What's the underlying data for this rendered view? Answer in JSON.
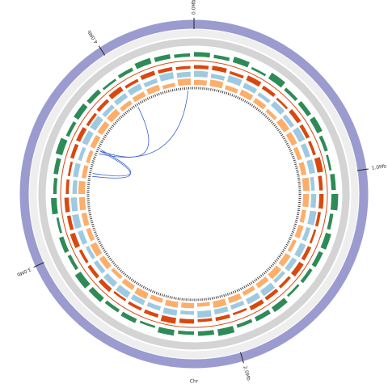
{
  "chart_data": {
    "type": "circos",
    "xlabel": "Chr",
    "xlim": [
      0,
      4.4
    ],
    "xticks": [
      {
        "value": 0,
        "label": "0.0Mb"
      },
      {
        "value": 1,
        "label": "1.0Mb"
      },
      {
        "value": 2,
        "label": "2.0Mb"
      },
      {
        "value": 3,
        "label": "3.0Mb"
      },
      {
        "value": 4,
        "label": "4.0Mb"
      }
    ],
    "tracks": [
      {
        "color": "#2e8b57",
        "values": [
          0.4,
          0.3,
          0.5,
          0.2,
          0.6,
          0.3,
          0.4,
          0.5,
          0.3,
          0.2,
          0.4,
          0.6,
          0.3,
          0.5,
          0.4,
          0.3,
          0.2,
          0.5,
          0.4,
          0.3,
          0.6,
          0.4,
          0.3,
          0.5,
          0.2,
          0.4,
          0.3,
          0.5,
          0.6,
          0.3,
          0.4,
          0.2,
          0.5,
          0.3,
          0.4,
          0.6,
          0.3,
          0.5,
          0.4,
          0.2,
          0.3,
          0.5,
          0.4,
          0.3
        ]
      },
      {
        "color": "#d9480f",
        "values": [
          0.5,
          0.6,
          0.4,
          0.7,
          0.5,
          0.3,
          0.6,
          0.5,
          0.4,
          0.8,
          0.5,
          0.6,
          0.4,
          0.3,
          0.5,
          0.7,
          0.4,
          0.5,
          0.6,
          0.3,
          0.5,
          0.4,
          0.6,
          0.8,
          0.5,
          0.4,
          0.3,
          0.6,
          0.5,
          0.4,
          0.7,
          0.5,
          0.6,
          0.4,
          0.3,
          0.5,
          0.6,
          0.4,
          0.5,
          0.7,
          0.4,
          0.6,
          0.5,
          0.4
        ]
      },
      {
        "color": "#9ecae1",
        "values": [
          0.8,
          0.6,
          0.9,
          0.7,
          0.5,
          0.8,
          0.6,
          0.9,
          0.7,
          0.8,
          0.5,
          0.7,
          0.9,
          0.6,
          0.8,
          0.7,
          0.5,
          0.9,
          0.8,
          0.6,
          0.7,
          0.9,
          0.5,
          0.8,
          0.6,
          0.7,
          0.9,
          0.8,
          0.6,
          0.5,
          0.7,
          0.9,
          0.8,
          0.6,
          0.7,
          0.5,
          0.8,
          0.9,
          0.6,
          0.7,
          0.8,
          0.6,
          0.9,
          0.7
        ]
      },
      {
        "color": "#fdae6b",
        "values": [
          0.7,
          0.9,
          0.6,
          0.8,
          0.7,
          0.5,
          0.9,
          0.8,
          0.6,
          0.7,
          0.9,
          0.8,
          0.6,
          0.7,
          0.5,
          0.8,
          0.9,
          0.7,
          0.6,
          0.8,
          0.9,
          0.5,
          0.7,
          0.8,
          0.6,
          0.9,
          0.7,
          0.5,
          0.8,
          0.9,
          0.6,
          0.7,
          0.8,
          0.9,
          0.6,
          0.5,
          0.7,
          0.8,
          0.9,
          0.6,
          0.7,
          0.8,
          0.5,
          0.9
        ]
      }
    ],
    "link_color": "#3a5fcd",
    "links": [
      {
        "source": 3.58,
        "target": 4.36
      },
      {
        "source": 3.6,
        "target": 4.0
      },
      {
        "source": 3.6,
        "target": 3.42
      },
      {
        "source": 3.61,
        "target": 3.44
      }
    ]
  }
}
